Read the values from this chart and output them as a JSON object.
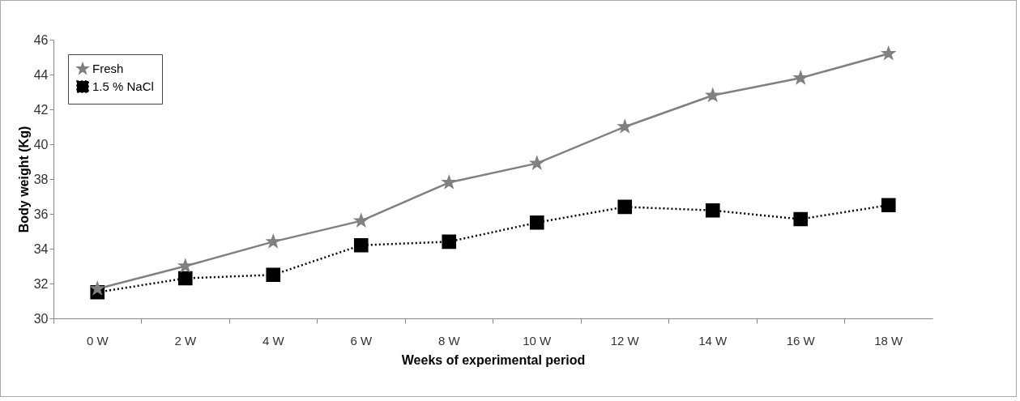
{
  "chart_data": {
    "type": "line",
    "xlabel": "Weeks of experimental  period",
    "ylabel": "Body weight (Kg)",
    "categories": [
      "0 W",
      "2 W",
      "4 W",
      "6 W",
      "8 W",
      "10 W",
      "12 W",
      "14  W",
      "16 W",
      "18 W"
    ],
    "series": [
      {
        "name": "Fresh",
        "color": "#808080",
        "marker": "star",
        "line_style": "solid",
        "values": [
          31.7,
          33.0,
          34.4,
          35.6,
          37.8,
          38.9,
          41.0,
          42.8,
          43.8,
          45.2
        ]
      },
      {
        "name": "1.5 % NaCl",
        "color": "#000000",
        "marker": "square",
        "line_style": "dotted",
        "values": [
          31.5,
          32.3,
          32.5,
          34.2,
          34.4,
          35.5,
          36.4,
          36.2,
          35.7,
          36.5
        ]
      }
    ],
    "ylim": [
      30,
      46
    ],
    "yticks": [
      30,
      32,
      34,
      36,
      38,
      40,
      42,
      44,
      46
    ],
    "grid": false,
    "legend": "top left"
  }
}
